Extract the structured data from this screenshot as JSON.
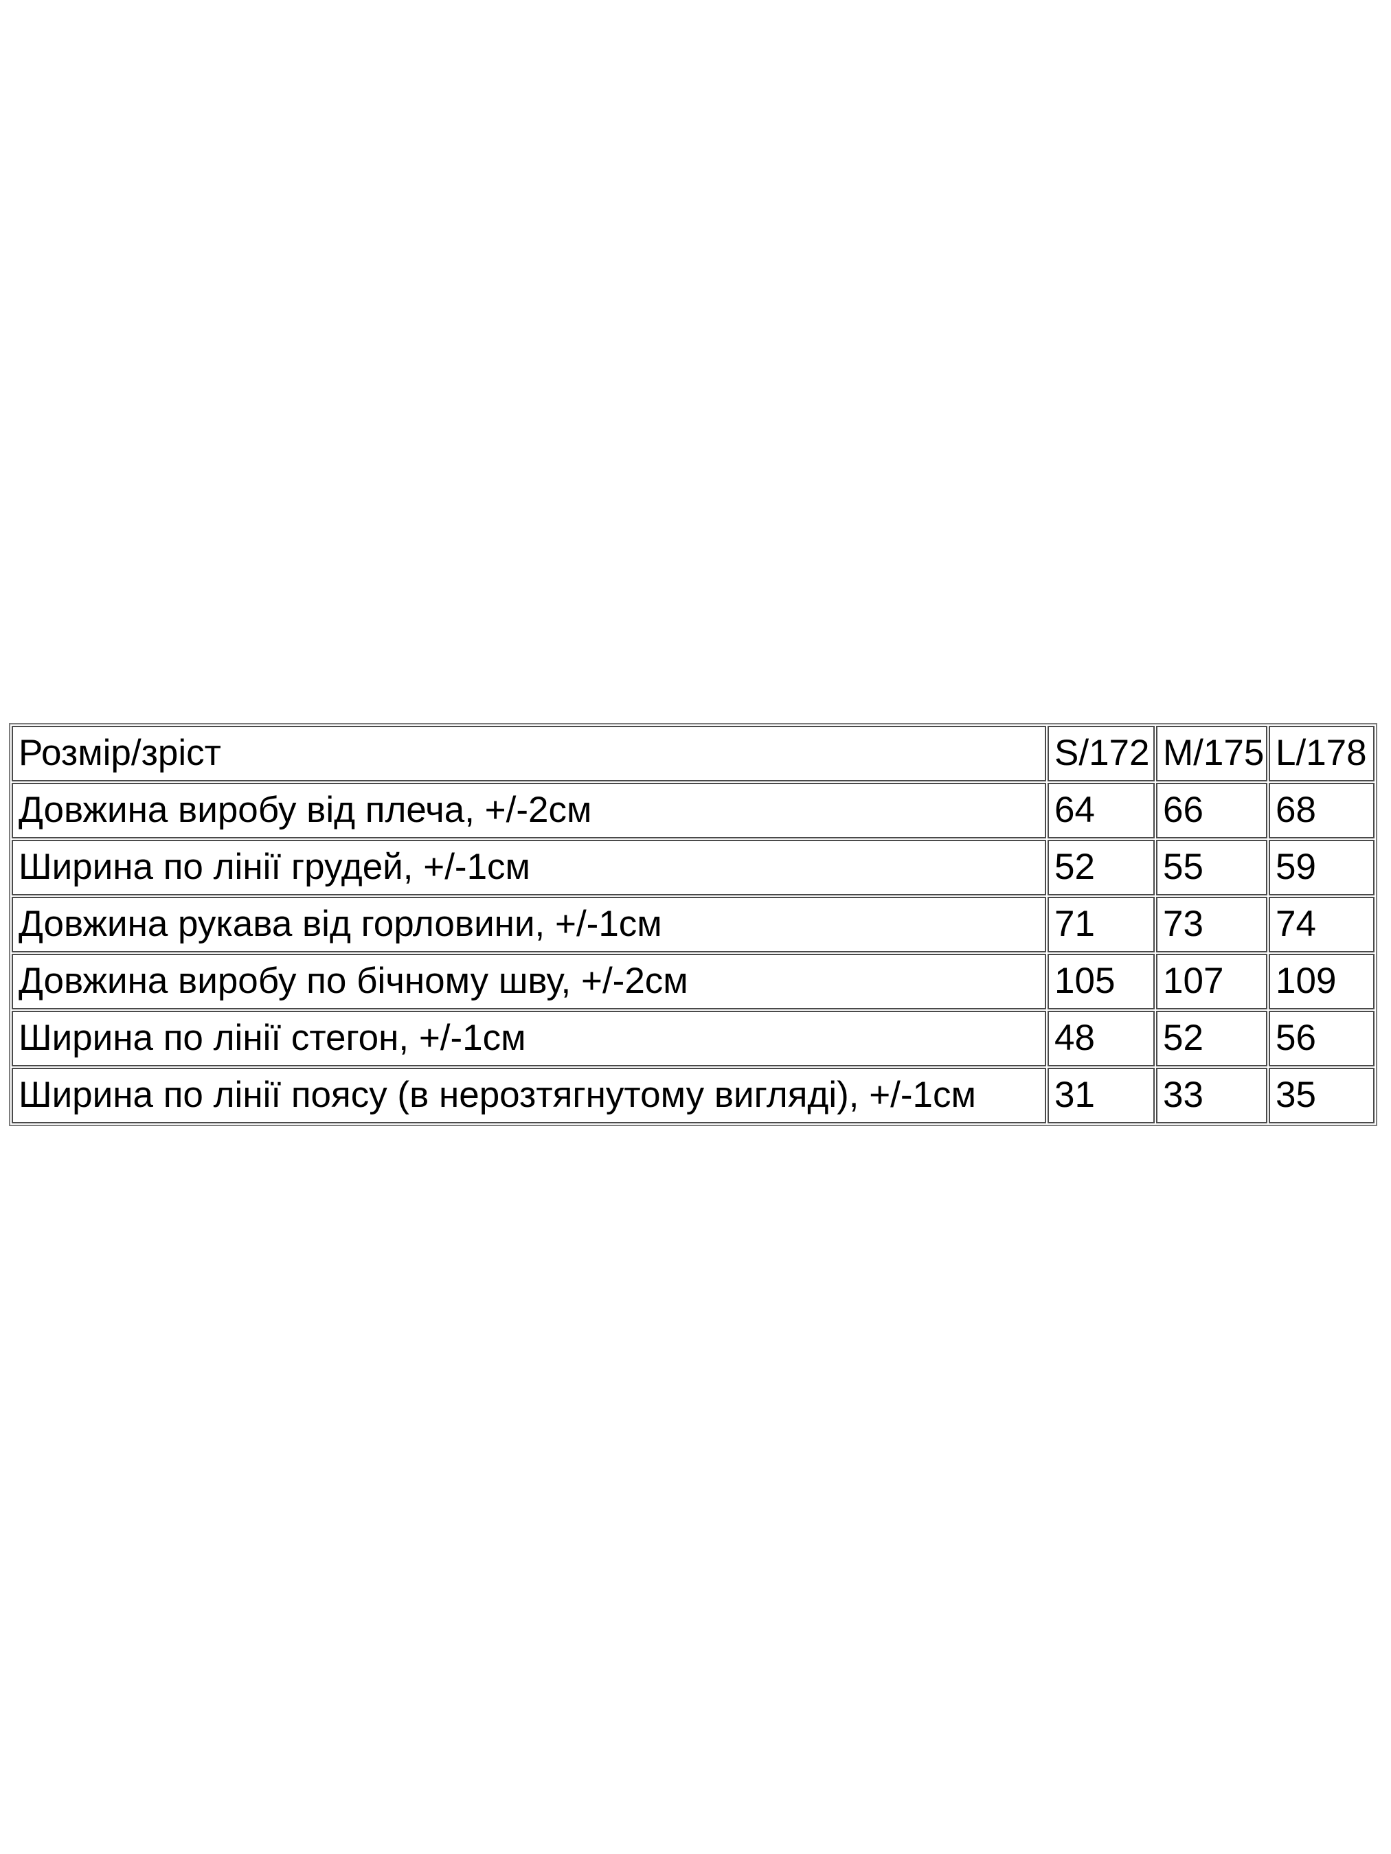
{
  "page": {
    "background_color": "#ffffff",
    "text_color": "#000000",
    "table_border_color": "#4a4a4a"
  },
  "size_table": {
    "header": {
      "label": "Розмір/зріст",
      "columns": [
        "S/172",
        "M/175",
        "L/178"
      ]
    },
    "rows": [
      {
        "label": "Довжина виробу від плеча, +/-2см",
        "values": [
          "64",
          "66",
          "68"
        ]
      },
      {
        "label": "Ширина по лінії грудей, +/-1см",
        "values": [
          "52",
          "55",
          "59"
        ]
      },
      {
        "label": "Довжина рукава від горловини, +/-1см",
        "values": [
          "71",
          "73",
          "74"
        ]
      },
      {
        "label": "Довжина виробу по бічному шву, +/-2см",
        "values": [
          "105",
          "107",
          "109"
        ]
      },
      {
        "label": "Ширина по лінії стегон, +/-1см",
        "values": [
          "48",
          "52",
          "56"
        ]
      },
      {
        "label": "Ширина по лінії поясу (в нерозтягнутому вигляді), +/-1см",
        "values": [
          "31",
          "33",
          "35"
        ]
      }
    ]
  }
}
